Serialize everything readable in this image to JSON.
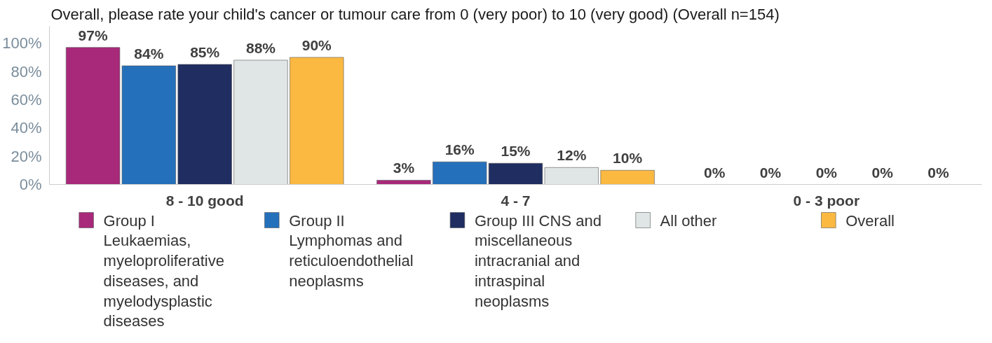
{
  "chart_data": {
    "type": "bar",
    "title": "Overall, please rate your child's cancer or tumour care from 0 (very poor) to 10 (very good) (Overall n=154)",
    "categories": [
      "8 - 10 good",
      "4 - 7",
      "0 - 3 poor"
    ],
    "series": [
      {
        "name": "Group I Leukaemias, myeloproliferative diseases, and myelodysplastic diseases",
        "color": "#a8297a",
        "values": [
          97,
          3,
          0
        ],
        "value_labels": [
          "97%",
          "3%",
          "0%"
        ]
      },
      {
        "name": "Group II Lymphomas and reticuloendothelial neoplasms",
        "color": "#2570bb",
        "values": [
          84,
          16,
          0
        ],
        "value_labels": [
          "84%",
          "16%",
          "0%"
        ]
      },
      {
        "name": "Group III CNS and miscellaneous intracranial and intraspinal neoplasms",
        "color": "#1f2d61",
        "values": [
          85,
          15,
          0
        ],
        "value_labels": [
          "85%",
          "15%",
          "0%"
        ]
      },
      {
        "name": "All other",
        "color": "#dfe6e5",
        "values": [
          88,
          12,
          0
        ],
        "value_labels": [
          "88%",
          "12%",
          "0%"
        ]
      },
      {
        "name": "Overall",
        "color": "#fbb942",
        "values": [
          90,
          10,
          0
        ],
        "value_labels": [
          "90%",
          "10%",
          "0%"
        ]
      }
    ],
    "ylim": [
      0,
      112
    ],
    "yticks": [
      {
        "value": 0,
        "label": "0%"
      },
      {
        "value": 20,
        "label": "20%"
      },
      {
        "value": 40,
        "label": "40%"
      },
      {
        "value": 60,
        "label": "60%"
      },
      {
        "value": 80,
        "label": "80%"
      },
      {
        "value": 100,
        "label": "100%"
      }
    ],
    "grid": false,
    "legend": "bottom"
  }
}
